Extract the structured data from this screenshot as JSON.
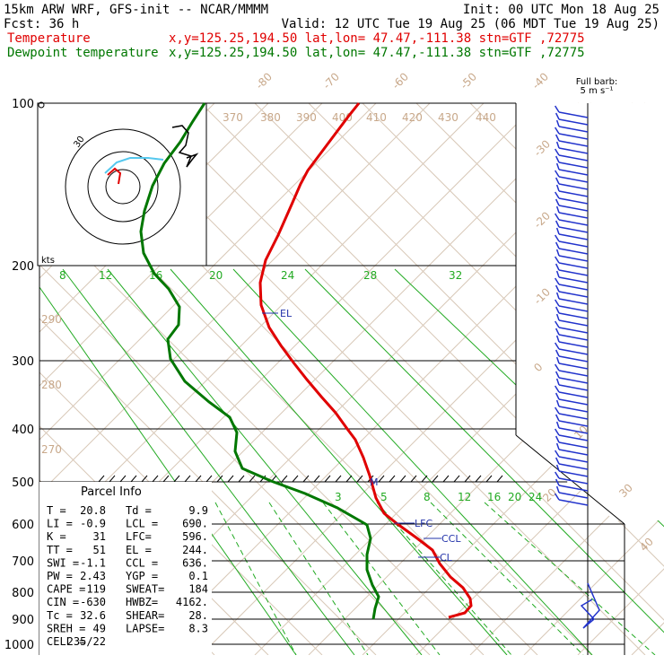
{
  "header": {
    "line1_left": "15km ARW WRF, GFS-init  -- NCAR/MMMM",
    "line1_right": "Init: 00 UTC Mon 18 Aug 25",
    "line2_left": "Fcst:   36 h",
    "line2_right": "Valid: 12 UTC Tue 19 Aug 25 (06 MDT Tue 19 Aug 25)",
    "temp_label": "Temperature",
    "temp_info": "x,y=125.25,194.50   lat,lon= 47.47,-111.38  stn=GTF ,72775",
    "dew_label": "Dewpoint temperature",
    "dew_info": "x,y=125.25,194.50   lat,lon= 47.47,-111.38  stn=GTF ,72775",
    "temp_color": "#e00000",
    "dew_color": "#007700"
  },
  "barb_legend": {
    "line1": "Full barb:",
    "line2": "5 m s⁻¹"
  },
  "hodograph": {
    "ring_label": "30",
    "units": "kts"
  },
  "parcel": {
    "title": "Parcel Info",
    "rows": [
      [
        "T  =",
        "20.8",
        "Td =",
        "9.9"
      ],
      [
        "LI =",
        "-0.9",
        "LCL =",
        "690."
      ],
      [
        "K  =",
        "31",
        "LFC=",
        "596."
      ],
      [
        "TT =",
        "51",
        "EL =",
        "244."
      ],
      [
        "SWI =",
        "-1.1",
        "CCL =",
        "636."
      ],
      [
        "PW =",
        "2.43",
        "YGP =",
        "0.1"
      ],
      [
        "CAPE =",
        "119",
        "SWEAT=",
        "184"
      ],
      [
        "CIN =",
        "-630",
        "HWBZ=",
        "4162."
      ],
      [
        "Tc =",
        "32.6",
        "SHEAR=",
        "28."
      ],
      [
        "SREH =",
        "49",
        "LAPSE=",
        "8.3"
      ],
      [
        "CELL =",
        "235/22",
        "",
        ""
      ]
    ]
  },
  "levels": {
    "el": "EL",
    "lfc": "LFC",
    "ccl": "CCL",
    "lcl": "CL"
  },
  "chart_data": {
    "type": "line",
    "pressure_ticks": [
      "100",
      "200",
      "300",
      "400",
      "500",
      "600",
      "700",
      "800",
      "900",
      "1000"
    ],
    "dry_adiabat_labels": [
      "-80",
      "-70",
      "-60",
      "-50",
      "-40",
      "-30",
      "-20",
      "-10",
      "0",
      "10",
      "20",
      "30",
      "40"
    ],
    "theta_labels": [
      "370",
      "380",
      "390",
      "400",
      "410",
      "420",
      "430",
      "440",
      "290",
      "280",
      "270"
    ],
    "mixing_ratio_labels_upper": [
      "8",
      "12",
      "16",
      "20",
      "24",
      "28",
      "32"
    ],
    "mixing_ratio_labels_lower": [
      "3",
      "5",
      "8",
      "12",
      "16",
      "20",
      "24"
    ],
    "series": [
      {
        "name": "Temperature",
        "color": "#e00000"
      },
      {
        "name": "Dewpoint temperature",
        "color": "#007700"
      }
    ]
  }
}
